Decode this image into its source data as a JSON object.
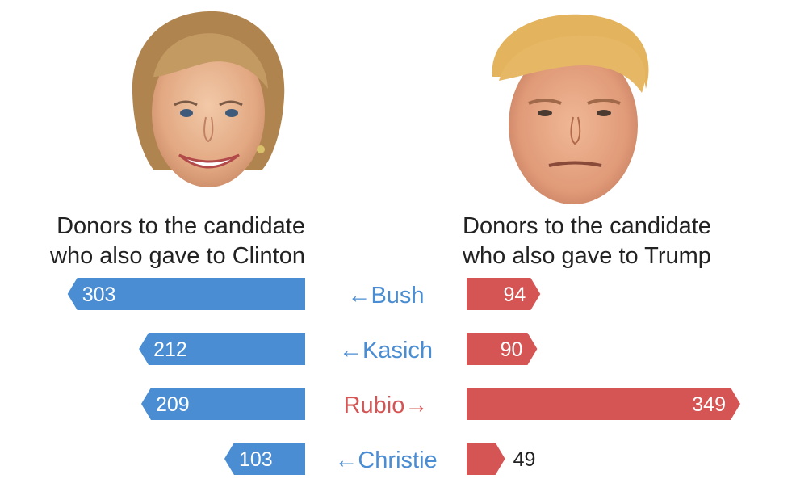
{
  "headers": {
    "left": [
      "Donors to the candidate",
      "who also gave to Clinton"
    ],
    "right": [
      "Donors to the candidate",
      "who also gave to Trump"
    ]
  },
  "portraits": {
    "left": "clinton-portrait",
    "right": "trump-portrait"
  },
  "colors": {
    "clinton": "#4a8dd2",
    "trump": "#d55555",
    "bar_label": "#ffffff",
    "outside_label": "#222222"
  },
  "chart_data": {
    "type": "bar",
    "categories": [
      "Bush",
      "Kasich",
      "Rubio",
      "Christie"
    ],
    "arrow_direction": [
      "left",
      "left",
      "right",
      "left"
    ],
    "series": [
      {
        "name": "Clinton",
        "values": [
          303,
          212,
          209,
          103
        ]
      },
      {
        "name": "Trump",
        "values": [
          94,
          90,
          349,
          49
        ]
      }
    ],
    "xlim": [
      0,
      360
    ]
  }
}
